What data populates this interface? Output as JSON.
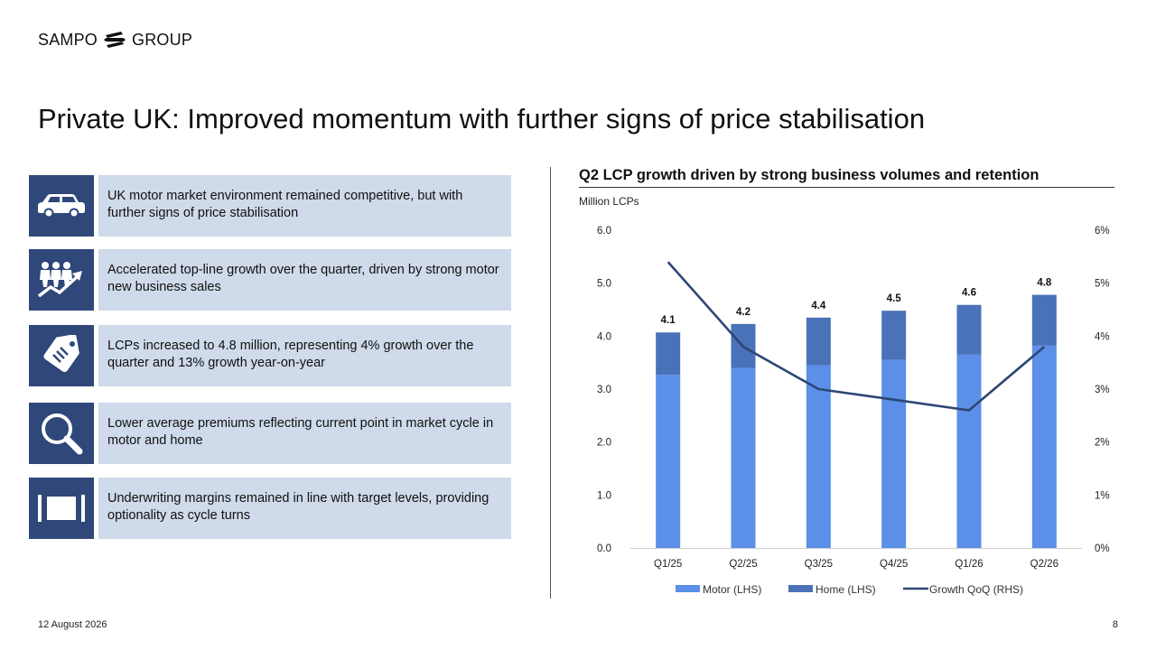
{
  "brand": {
    "name_left": "SAMPO",
    "name_right": "GROUP"
  },
  "slide": {
    "title": "Private UK: Improved momentum with further signs of price stabilisation",
    "date": "12 August 2026",
    "page": "8"
  },
  "bullets": [
    {
      "icon": "car-icon",
      "text": "UK motor market environment remained competitive, but with further signs of price stabilisation"
    },
    {
      "icon": "growth-people-icon",
      "text": "Accelerated top-line growth over the quarter, driven by strong motor new business sales"
    },
    {
      "icon": "price-tag-icon",
      "text": "LCPs increased to 4.8 million, representing 4% growth over the quarter and 13% growth year-on-year"
    },
    {
      "icon": "magnifier-icon",
      "text": "Lower average premiums reflecting current point in market cycle in motor and home"
    },
    {
      "icon": "margin-bars-icon",
      "text": "Underwriting margins remained in line with target levels, providing optionality as cycle turns"
    }
  ],
  "colors": {
    "motor": "#5b8fe8",
    "home": "#4a72b8",
    "growth_line": "#2d4675",
    "icon_bg": "#2f4779",
    "text_bg": "#cfdaea"
  },
  "chart_data": {
    "type": "bar",
    "stacked": true,
    "title": "Q2 LCP growth driven by strong business volumes and retention",
    "unit_label": "Million LCPs",
    "categories": [
      "Q1/25",
      "Q2/25",
      "Q3/25",
      "Q4/25",
      "Q1/26",
      "Q2/26"
    ],
    "series": [
      {
        "name": "Motor (LHS)",
        "type": "bar",
        "values": [
          3.27,
          3.4,
          3.45,
          3.55,
          3.65,
          3.82
        ]
      },
      {
        "name": "Home (LHS)",
        "type": "bar",
        "values": [
          0.8,
          0.83,
          0.9,
          0.93,
          0.94,
          0.96
        ]
      },
      {
        "name": "Growth QoQ (RHS)",
        "type": "line",
        "axis": "right",
        "values": [
          5.4,
          3.8,
          3.0,
          2.8,
          2.6,
          3.8
        ]
      }
    ],
    "total_labels": [
      "4.1",
      "4.2",
      "4.4",
      "4.5",
      "4.6",
      "4.8"
    ],
    "ylim": [
      0,
      6
    ],
    "yticks": [
      "0.0",
      "1.0",
      "2.0",
      "3.0",
      "4.0",
      "5.0",
      "6.0"
    ],
    "y2lim": [
      0,
      6
    ],
    "y2ticks": [
      "0%",
      "1%",
      "2%",
      "3%",
      "4%",
      "5%",
      "6%"
    ],
    "legend_position": "bottom",
    "grid": false
  }
}
